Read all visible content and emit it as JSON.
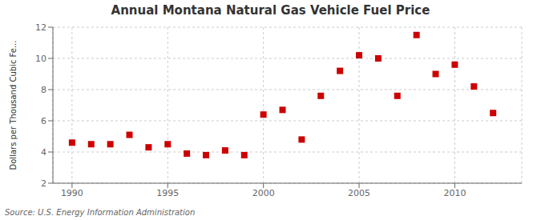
{
  "chart_data": {
    "type": "scatter",
    "title": "Annual Montana Natural Gas Vehicle Fuel Price",
    "y_label": "Dollars per Thousand Cubic Fe...",
    "annotation": "Source: U.S. Energy Information Administration",
    "x": [
      1990,
      1991,
      1992,
      1993,
      1994,
      1995,
      1996,
      1997,
      1998,
      1999,
      2000,
      2001,
      2002,
      2003,
      2004,
      2005,
      2006,
      2007,
      2008,
      2009,
      2010,
      2011,
      2012
    ],
    "values": [
      4.6,
      4.5,
      4.5,
      5.1,
      4.3,
      4.5,
      3.9,
      3.8,
      4.1,
      3.8,
      6.4,
      6.7,
      4.8,
      7.6,
      9.2,
      10.2,
      10.0,
      7.6,
      11.5,
      9.0,
      9.6,
      8.2,
      6.5
    ],
    "color": "#cc0000",
    "marker": "square",
    "xlim": [
      1989,
      2013.5
    ],
    "xticks": [
      1990,
      1995,
      2000,
      2005,
      2010
    ],
    "ylim": [
      2,
      12
    ],
    "yticks": [
      2,
      4,
      6,
      8,
      10,
      12
    ],
    "grid": true
  }
}
